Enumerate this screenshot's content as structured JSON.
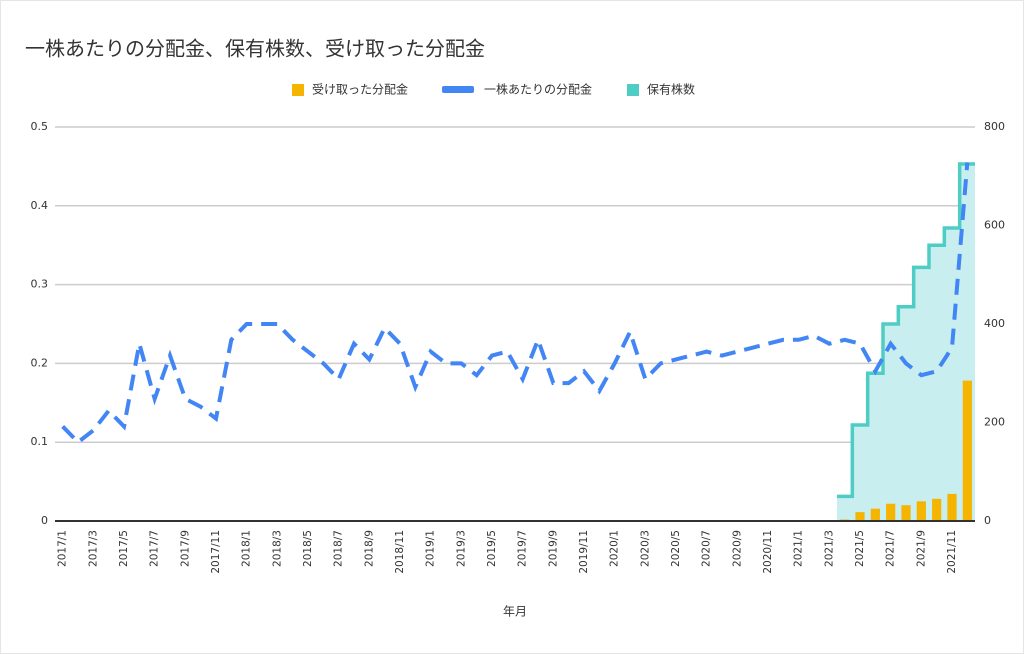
{
  "chart_data": {
    "type": "combo",
    "title": "一株あたりの分配金、保有株数、受け取った分配金",
    "x_label": "年月",
    "categories": [
      "2017/1",
      null,
      "2017/3",
      null,
      "2017/5",
      null,
      "2017/7",
      null,
      "2017/9",
      null,
      "2017/11",
      null,
      "2018/1",
      null,
      "2018/3",
      null,
      "2018/5",
      null,
      "2018/7",
      null,
      "2018/9",
      null,
      "2018/11",
      null,
      "2019/1",
      null,
      "2019/3",
      null,
      "2019/5",
      null,
      "2019/7",
      null,
      "2019/9",
      null,
      "2019/11",
      null,
      "2020/1",
      null,
      "2020/3",
      null,
      "2020/5",
      null,
      "2020/7",
      null,
      "2020/9",
      null,
      "2020/11",
      null,
      "2021/1",
      null,
      "2021/3",
      null,
      "2021/5",
      null,
      "2021/7",
      null,
      "2021/9",
      null,
      "2021/11",
      null
    ],
    "series": [
      {
        "name": "受け取った分配金",
        "color": "#f4b400",
        "kind": "bar",
        "axis": "y2",
        "values": [
          null,
          null,
          null,
          null,
          null,
          null,
          null,
          null,
          null,
          null,
          null,
          null,
          null,
          null,
          null,
          null,
          null,
          null,
          null,
          null,
          null,
          null,
          null,
          null,
          null,
          null,
          null,
          null,
          null,
          null,
          null,
          null,
          null,
          null,
          null,
          null,
          null,
          null,
          null,
          null,
          null,
          null,
          null,
          null,
          null,
          null,
          null,
          null,
          null,
          null,
          null,
          3,
          18,
          25,
          35,
          32,
          40,
          45,
          55,
          285
        ]
      },
      {
        "name": "一株あたりの分配金",
        "color": "#4285f4",
        "kind": "line",
        "values": [
          0.12,
          0.1,
          0.115,
          0.14,
          0.12,
          0.225,
          0.155,
          0.21,
          0.155,
          0.145,
          0.13,
          0.23,
          0.25,
          0.25,
          0.25,
          0.23,
          0.215,
          0.2,
          0.18,
          0.225,
          0.205,
          0.245,
          0.225,
          0.17,
          0.215,
          0.2,
          0.2,
          0.185,
          0.21,
          0.215,
          0.18,
          0.23,
          0.175,
          0.175,
          0.19,
          0.165,
          0.2,
          0.24,
          0.18,
          0.2,
          0.205,
          0.21,
          0.215,
          0.21,
          0.215,
          0.22,
          0.225,
          0.23,
          0.23,
          0.235,
          0.225,
          0.23,
          0.225,
          0.19,
          0.225,
          0.2,
          0.185,
          0.19,
          0.22,
          0.455
        ]
      },
      {
        "name": "保有株数",
        "color": "#4ecdc4",
        "kind": "step-area",
        "axis": "y2",
        "values": [
          null,
          null,
          null,
          null,
          null,
          null,
          null,
          null,
          null,
          null,
          null,
          null,
          null,
          null,
          null,
          null,
          null,
          null,
          null,
          null,
          null,
          null,
          null,
          null,
          null,
          null,
          null,
          null,
          null,
          null,
          null,
          null,
          null,
          null,
          null,
          null,
          null,
          null,
          null,
          null,
          null,
          null,
          null,
          null,
          null,
          null,
          null,
          null,
          null,
          null,
          null,
          50,
          195,
          300,
          400,
          435,
          515,
          560,
          595,
          725
        ]
      }
    ],
    "ylim": [
      0,
      0.5
    ],
    "yticks": [
      0,
      0.1,
      0.2,
      0.3,
      0.4,
      0.5
    ],
    "y2lim": [
      0,
      800
    ],
    "y2ticks": [
      0,
      200,
      400,
      600,
      800
    ],
    "grid": true,
    "legend": "top"
  }
}
